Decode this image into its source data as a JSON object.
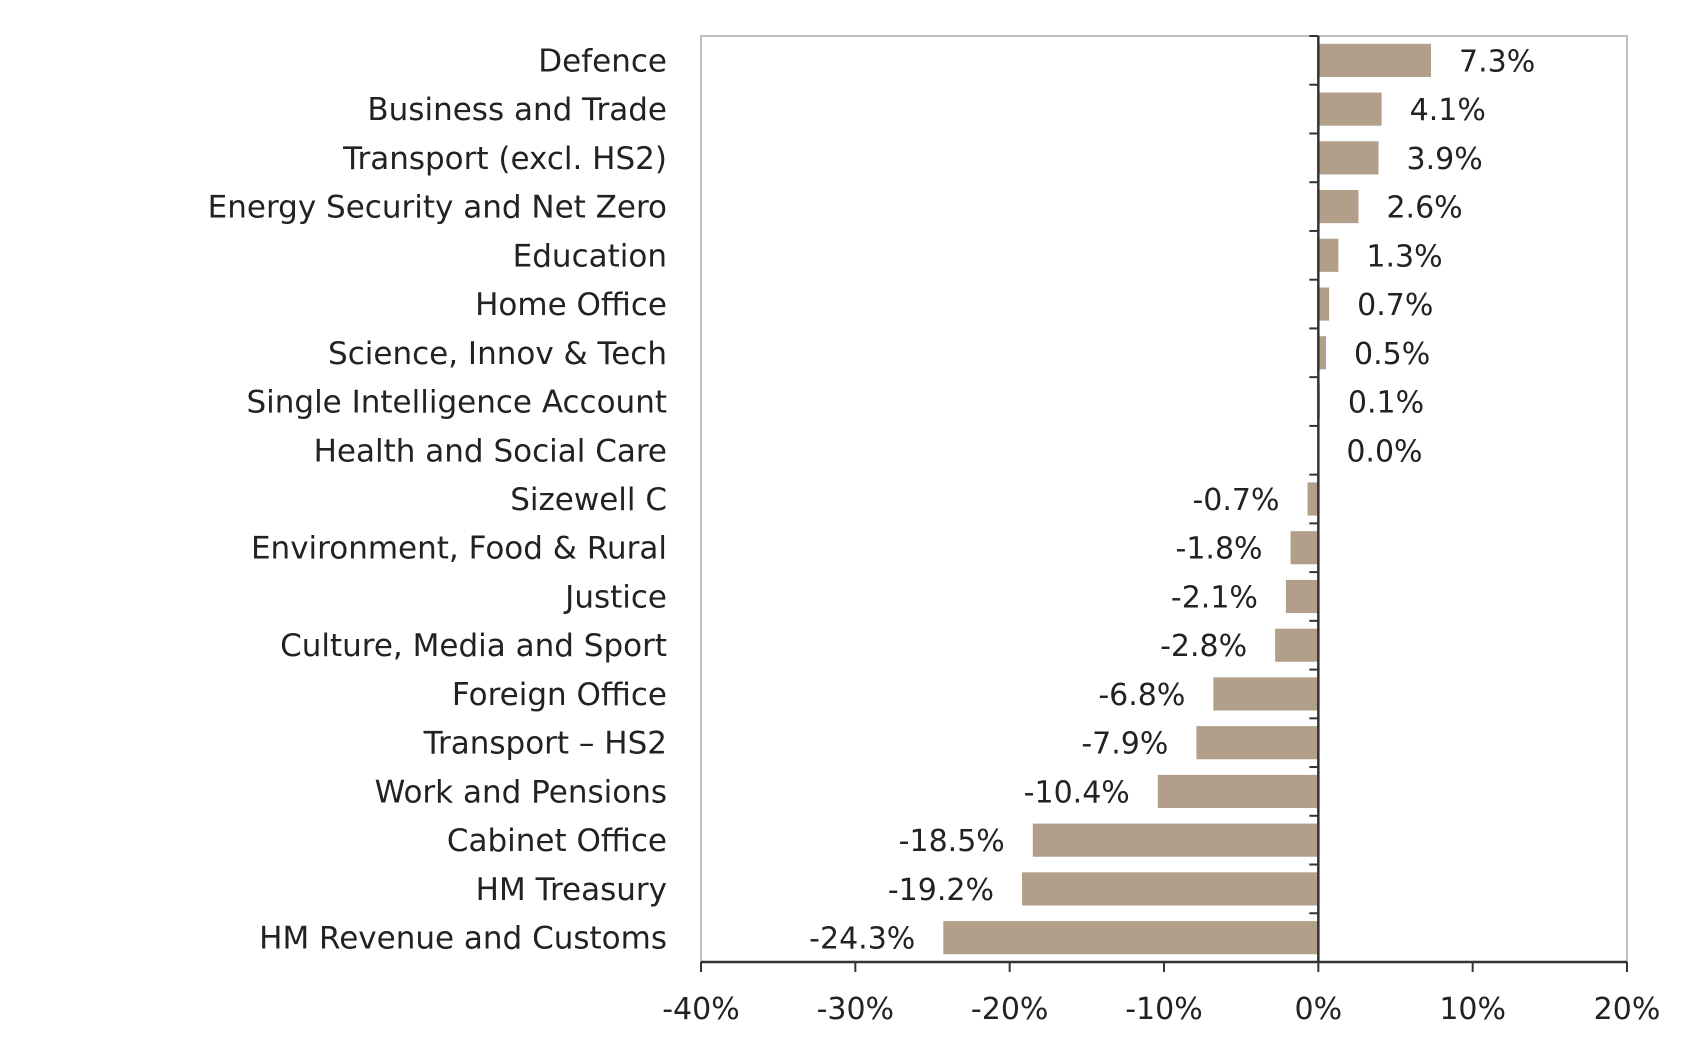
{
  "chart_data": {
    "type": "bar",
    "orientation": "horizontal",
    "categories": [
      "Defence",
      "Business and Trade",
      "Transport (excl. HS2)",
      "Energy Security and Net Zero",
      "Education",
      "Home Office",
      "Science, Innov & Tech",
      "Single Intelligence Account",
      "Health and Social Care",
      "Sizewell C",
      "Environment, Food & Rural",
      "Justice",
      "Culture, Media and Sport",
      "Foreign Office",
      "Transport – HS2",
      "Work and Pensions",
      "Cabinet Office",
      "HM Treasury",
      "HM Revenue and Customs"
    ],
    "values": [
      7.3,
      4.1,
      3.9,
      2.6,
      1.3,
      0.7,
      0.5,
      0.1,
      0.0,
      -0.7,
      -1.8,
      -2.1,
      -2.8,
      -6.8,
      -7.9,
      -10.4,
      -18.5,
      -19.2,
      -24.3
    ],
    "value_labels": [
      "7.3%",
      "4.1%",
      "3.9%",
      "2.6%",
      "1.3%",
      "0.7%",
      "0.5%",
      "0.1%",
      "0.0%",
      "-0.7%",
      "-1.8%",
      "-2.1%",
      "-2.8%",
      "-6.8%",
      "-7.9%",
      "-10.4%",
      "-18.5%",
      "-19.2%",
      "-24.3%"
    ],
    "xlim": [
      -40,
      20
    ],
    "x_ticks": [
      -40,
      -30,
      -20,
      -10,
      0,
      10,
      20
    ],
    "x_tick_labels": [
      "-40%",
      "-30%",
      "-20%",
      "-10%",
      "0%",
      "10%",
      "20%"
    ],
    "title": "",
    "xlabel": "",
    "ylabel": "",
    "grid": false,
    "legend": "none",
    "colors": {
      "bar": "#b19f89",
      "axis": "#333333",
      "frame": "#bfbfbf",
      "text": "#222222"
    }
  }
}
